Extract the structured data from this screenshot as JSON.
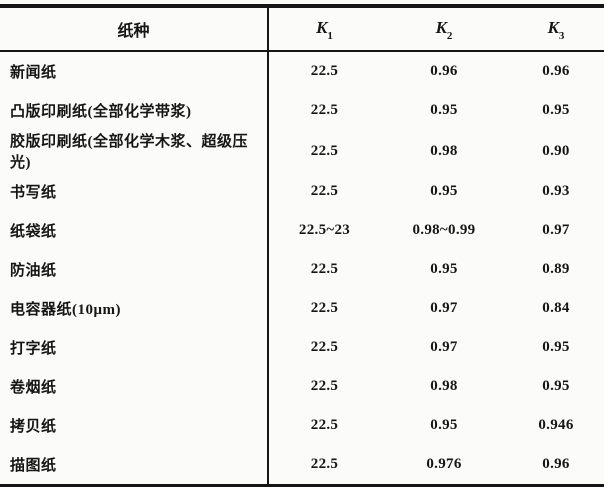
{
  "page": {
    "background_color": "#fbfbf9",
    "ink_color": "#161616"
  },
  "table": {
    "header": {
      "paper_type": "纸种",
      "k_headers": [
        {
          "base": "K",
          "sub": "1"
        },
        {
          "base": "K",
          "sub": "2"
        },
        {
          "base": "K",
          "sub": "3"
        }
      ]
    },
    "rows": [
      {
        "name": "新闻纸",
        "k1": "22.5",
        "k2": "0.96",
        "k3": "0.96"
      },
      {
        "name": "凸版印刷纸(全部化学带浆)",
        "k1": "22.5",
        "k2": "0.95",
        "k3": "0.95"
      },
      {
        "name": "胶版印刷纸(全部化学木浆、超级压光)",
        "k1": "22.5",
        "k2": "0.98",
        "k3": "0.90"
      },
      {
        "name": "书写纸",
        "k1": "22.5",
        "k2": "0.95",
        "k3": "0.93"
      },
      {
        "name": "纸袋纸",
        "k1": "22.5~23",
        "k2": "0.98~0.99",
        "k3": "0.97"
      },
      {
        "name": "防油纸",
        "k1": "22.5",
        "k2": "0.95",
        "k3": "0.89"
      },
      {
        "name": "电容器纸(10μm)",
        "k1": "22.5",
        "k2": "0.97",
        "k3": "0.84"
      },
      {
        "name": "打字纸",
        "k1": "22.5",
        "k2": "0.97",
        "k3": "0.95"
      },
      {
        "name": "卷烟纸",
        "k1": "22.5",
        "k2": "0.98",
        "k3": "0.95"
      },
      {
        "name": "拷贝纸",
        "k1": "22.5",
        "k2": "0.95",
        "k3": "0.946"
      },
      {
        "name": "描图纸",
        "k1": "22.5",
        "k2": "0.976",
        "k3": "0.96"
      }
    ]
  }
}
